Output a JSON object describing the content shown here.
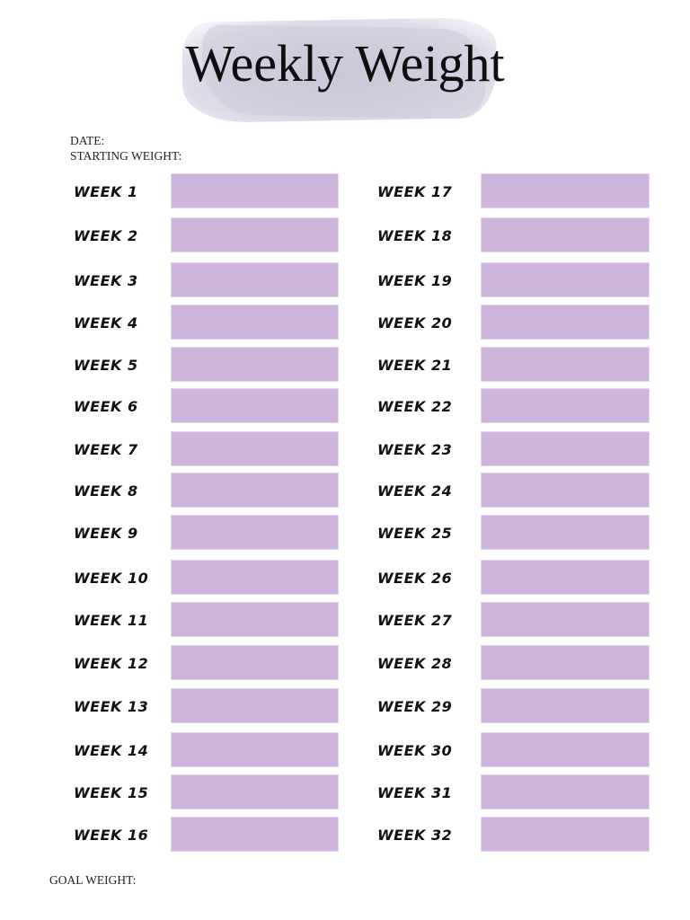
{
  "header": {
    "title": "Weekly Weight"
  },
  "fields": {
    "date_label": "DATE:",
    "starting_weight_label": "STARTING WEIGHT:",
    "goal_weight_label": "GOAL WEIGHT:"
  },
  "colors": {
    "box_fill": "#cdb4dc",
    "title_wash": "#d0d0e0"
  },
  "weeks_left": [
    {
      "label": "WEEK 1",
      "value": ""
    },
    {
      "label": "WEEK 2",
      "value": ""
    },
    {
      "label": "WEEK 3",
      "value": ""
    },
    {
      "label": "WEEK 4",
      "value": ""
    },
    {
      "label": "WEEK 5",
      "value": ""
    },
    {
      "label": "WEEK 6",
      "value": ""
    },
    {
      "label": "WEEK 7",
      "value": ""
    },
    {
      "label": "WEEK 8",
      "value": ""
    },
    {
      "label": "WEEK 9",
      "value": ""
    },
    {
      "label": "WEEK 10",
      "value": ""
    },
    {
      "label": "WEEK 11",
      "value": ""
    },
    {
      "label": "WEEK 12",
      "value": ""
    },
    {
      "label": "WEEK 13",
      "value": ""
    },
    {
      "label": "WEEK 14",
      "value": ""
    },
    {
      "label": "WEEK 15",
      "value": ""
    },
    {
      "label": "WEEK 16",
      "value": ""
    }
  ],
  "weeks_right": [
    {
      "label": "WEEK 17",
      "value": ""
    },
    {
      "label": "WEEK 18",
      "value": ""
    },
    {
      "label": "WEEK 19",
      "value": ""
    },
    {
      "label": "WEEK 20",
      "value": ""
    },
    {
      "label": "WEEK 21",
      "value": ""
    },
    {
      "label": "WEEK 22",
      "value": ""
    },
    {
      "label": "WEEK 23",
      "value": ""
    },
    {
      "label": "WEEK 24",
      "value": ""
    },
    {
      "label": "WEEK 25",
      "value": ""
    },
    {
      "label": "WEEK 26",
      "value": ""
    },
    {
      "label": "WEEK 27",
      "value": ""
    },
    {
      "label": "WEEK 28",
      "value": ""
    },
    {
      "label": "WEEK 29",
      "value": ""
    },
    {
      "label": "WEEK 30",
      "value": ""
    },
    {
      "label": "WEEK 31",
      "value": ""
    },
    {
      "label": "WEEK 32",
      "value": ""
    }
  ]
}
